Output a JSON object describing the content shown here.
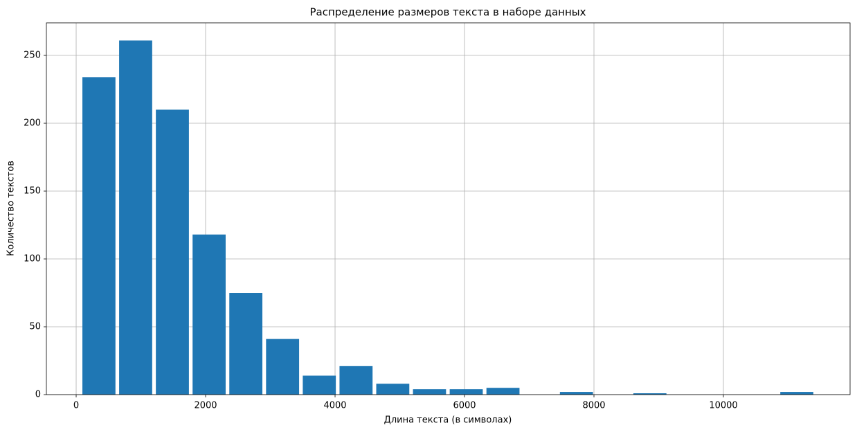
{
  "chart_data": {
    "type": "histogram",
    "title": "Распределение размеров текста в наборе данных",
    "x_label": "Длина текста (в символах)",
    "y_label": "Количество текстов",
    "bins": [
      68,
      635.5,
      1203,
      1770.5,
      2338,
      2905.5,
      3473,
      4040.5,
      4608,
      5175.5,
      5743,
      6310.5,
      6878,
      7445.5,
      8013,
      8580.5,
      9148,
      9715.5,
      10283,
      10850.5,
      11418
    ],
    "values": [
      234,
      261,
      210,
      118,
      75,
      41,
      14,
      21,
      8,
      4,
      4,
      5,
      0,
      2,
      0,
      1,
      0,
      0,
      0,
      2
    ],
    "color": "#1f77b4",
    "rwidth": 0.9,
    "xlim": [
      -460,
      11957
    ],
    "ylim": [
      0,
      274
    ],
    "xticks": [
      0,
      2000,
      4000,
      6000,
      8000,
      10000
    ],
    "yticks": [
      0,
      50,
      100,
      150,
      200,
      250
    ],
    "grid": true
  }
}
